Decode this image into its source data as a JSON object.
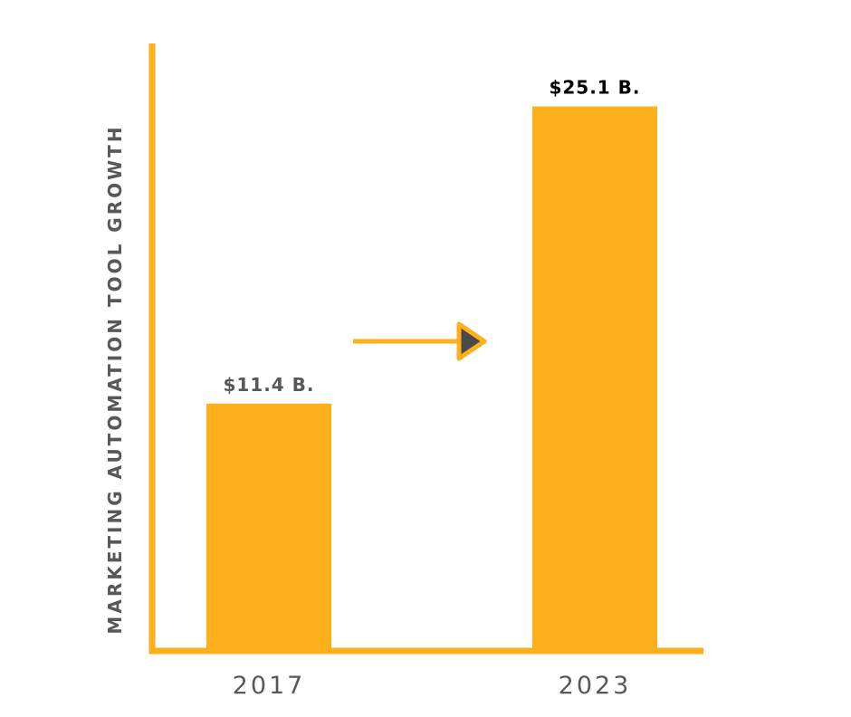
{
  "chart_data": {
    "type": "bar",
    "categories": [
      "2017",
      "2023"
    ],
    "values": [
      11.4,
      25.1
    ],
    "data_labels": [
      "$11.4 B.",
      "$25.1 B."
    ],
    "title": "",
    "xlabel": "",
    "ylabel": "MARKETING AUTOMATION TOOL GROWTH",
    "ylim": [
      0,
      28
    ],
    "grid": false,
    "annotations": [
      {
        "type": "arrow",
        "from": "2017",
        "to": "2023"
      }
    ]
  },
  "colors": {
    "bar": "#FDB01C",
    "axis": "#FDB01C",
    "arrow": "#FDB01C",
    "arrowhead_fill": "#4A4A4A",
    "label_dark": "#000000",
    "label_grey": "#58585A"
  }
}
